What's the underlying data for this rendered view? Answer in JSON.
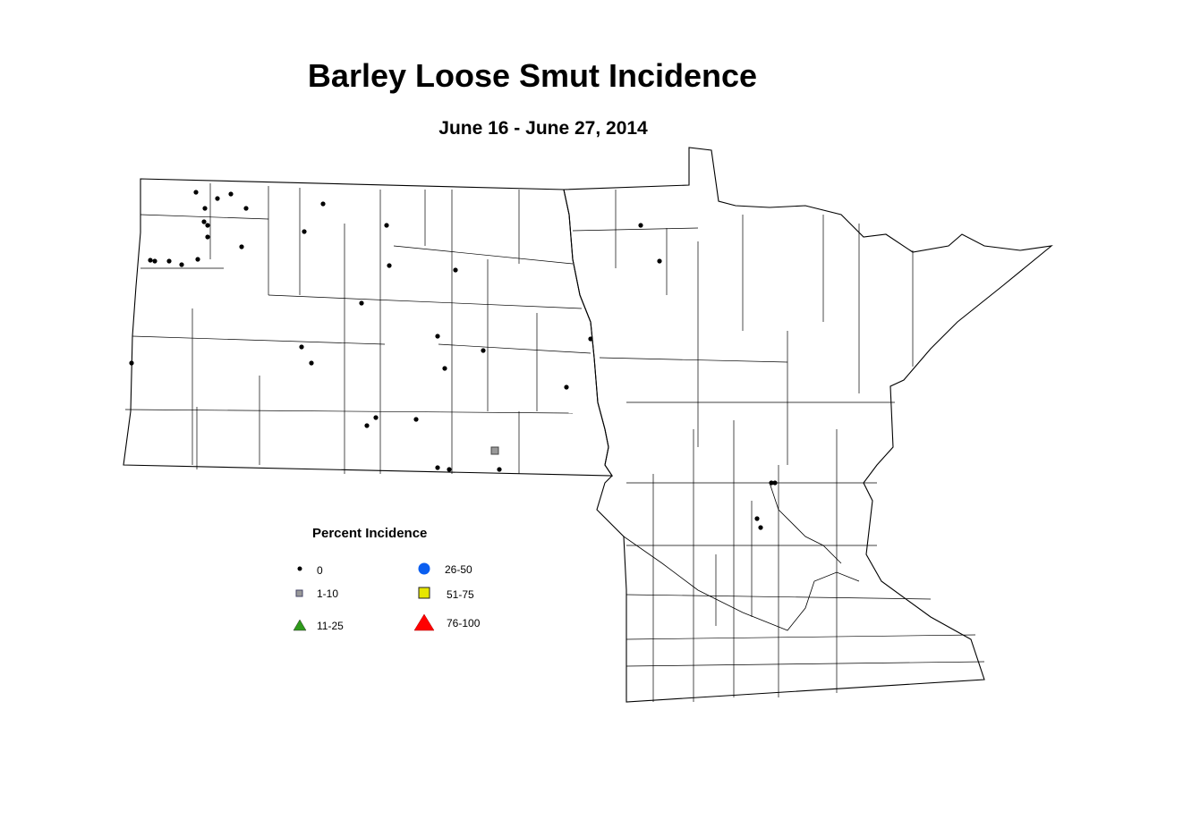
{
  "title": "Barley Loose Smut Incidence",
  "subtitle": "June 16 - June 27, 2014",
  "legend": {
    "title": "Percent Incidence",
    "classes": [
      {
        "label": "0",
        "symbol": "small-dot",
        "color": "#000000"
      },
      {
        "label": "1-10",
        "symbol": "square",
        "color": "#999999"
      },
      {
        "label": "11-25",
        "symbol": "triangle",
        "color": "#2e9a1a"
      },
      {
        "label": "26-50",
        "symbol": "circle",
        "color": "#0a5ef0"
      },
      {
        "label": "51-75",
        "symbol": "square",
        "color": "#e6e600"
      },
      {
        "label": "76-100",
        "symbol": "triangle",
        "color": "#ff0000"
      }
    ]
  }
}
